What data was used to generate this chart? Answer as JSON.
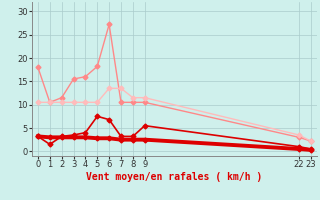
{
  "bg_color": "#cff0ec",
  "grid_color": "#aacccc",
  "xlabel": "Vent moyen/en rafales ( km/h )",
  "xlabel_color": "#dd0000",
  "xlabel_fontsize": 7,
  "yticks": [
    0,
    5,
    10,
    15,
    20,
    25,
    30
  ],
  "ylim": [
    -1,
    32
  ],
  "xlim": [
    -0.5,
    23.5
  ],
  "line1_x": [
    0,
    1,
    2,
    3,
    4,
    5,
    6,
    7,
    8,
    9,
    22,
    23
  ],
  "line1_y": [
    18,
    10.5,
    11.5,
    15.5,
    16,
    18.2,
    27.2,
    10.5,
    10.5,
    10.5,
    3.0,
    2.2
  ],
  "line1_color": "#ff8888",
  "line1_lw": 1.0,
  "line2_x": [
    0,
    1,
    2,
    3,
    4,
    5,
    6,
    7,
    8,
    9,
    22,
    23
  ],
  "line2_y": [
    10.5,
    10.5,
    10.5,
    10.5,
    10.5,
    10.5,
    13.5,
    13.5,
    11.5,
    11.5,
    3.5,
    2.2
  ],
  "line2_color": "#ffbbbb",
  "line2_lw": 1.0,
  "line3_x": [
    0,
    1,
    2,
    3,
    4,
    5,
    6,
    7,
    8,
    9,
    22,
    23
  ],
  "line3_y": [
    3.2,
    1.5,
    3.2,
    3.5,
    4.0,
    7.5,
    6.8,
    3.2,
    3.2,
    5.5,
    1.0,
    0.5
  ],
  "line3_color": "#dd0000",
  "line3_lw": 1.2,
  "line4_x": [
    0,
    1,
    2,
    3,
    4,
    5,
    6,
    7,
    8,
    9,
    22,
    23
  ],
  "line4_y": [
    3.2,
    3.0,
    3.0,
    3.0,
    3.0,
    2.8,
    2.8,
    2.5,
    2.5,
    2.5,
    0.5,
    0.3
  ],
  "line4_color": "#dd0000",
  "line4_lw": 2.8,
  "xtick_positions": [
    0,
    1,
    2,
    3,
    4,
    5,
    6,
    7,
    8,
    9,
    22,
    23
  ],
  "xtick_labels": [
    "0",
    "1",
    "2",
    "3",
    "4",
    "5",
    "6",
    "7",
    "8",
    "9",
    "22",
    "23"
  ]
}
